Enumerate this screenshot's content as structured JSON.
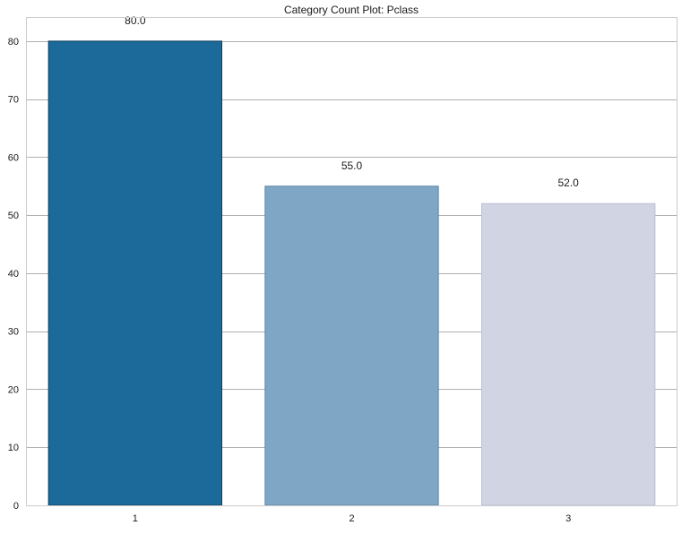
{
  "chart_data": {
    "type": "bar",
    "title": "Category Count Plot: Pclass",
    "xlabel": "",
    "ylabel": "",
    "categories": [
      "1",
      "2",
      "3"
    ],
    "values": [
      80,
      55,
      52
    ],
    "value_labels": [
      "80.0",
      "55.0",
      "52.0"
    ],
    "bar_colors": [
      "#1b6a9a",
      "#7fa6c5",
      "#d1d4e3"
    ],
    "bar_edge_colors": [
      "#0f3d5a",
      "#5a87a8",
      "#b9bed3"
    ],
    "ylim": [
      0,
      84
    ],
    "yticks": [
      0,
      10,
      20,
      30,
      40,
      50,
      60,
      70,
      80
    ],
    "grid": "horizontal",
    "grid_color": "#b0b0b0",
    "frame_color": "#cccccc",
    "legend": "none"
  }
}
